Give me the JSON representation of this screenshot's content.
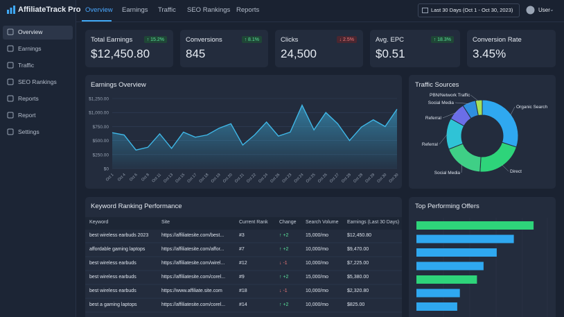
{
  "app": {
    "logo": "AffiliateTrack Pro"
  },
  "sidebar": [
    "Overview",
    "Earnings",
    "Traffic",
    "SEO Rankings",
    "Reports",
    "Report",
    "Settings"
  ],
  "nav": {
    "tabs": [
      "Overview",
      "Earnings",
      "Traffic",
      "SEO Rankings",
      "Reports"
    ],
    "date_range": "Last 30 Days (Oct 1 - Oct 30, 2023)",
    "user": "User"
  },
  "kpis": [
    {
      "title": "Total Earnings",
      "change": "↑ 15.2%",
      "value": "$12,450.80"
    },
    {
      "title": "Conversions",
      "change": "↑ 8.1%",
      "value": "845"
    },
    {
      "title": "Clicks",
      "change": "↓ 2.5%",
      "value": "24,500"
    },
    {
      "title": "Avg. EPC",
      "change": "↑ 18.3%",
      "value": "$0.51"
    },
    {
      "title": "Conversion Rate",
      "value": "3.45%"
    }
  ],
  "chart_data": [
    {
      "type": "line",
      "title": "Earnings Overview",
      "color": "#3fb8e8",
      "grid": true,
      "categories": [
        "Oct 1",
        "Oct 4",
        "Oct 6",
        "Oct 8",
        "Oct 11",
        "Oct 13",
        "Oct 15",
        "Oct 17",
        "Oct 18",
        "Oct 19",
        "Oct 20",
        "Oct 21",
        "Oct 22",
        "Oct 24",
        "Oct 26",
        "Oct 23",
        "Oct 24",
        "Oct 25",
        "Oct 26",
        "Oct 27",
        "Oct 28",
        "Oct 28",
        "Oct 29",
        "Oct 30",
        "Oct 30"
      ],
      "values": [
        640,
        600,
        330,
        380,
        620,
        360,
        650,
        560,
        600,
        720,
        800,
        420,
        600,
        830,
        580,
        650,
        1130,
        690,
        1000,
        800,
        500,
        740,
        870,
        750,
        1060
      ],
      "ylim": [
        0,
        1250
      ],
      "yticks": [
        {
          "value": 0,
          "label": "$0"
        },
        {
          "value": 250,
          "label": "$250.00"
        },
        {
          "value": 500,
          "label": "$500.00"
        },
        {
          "value": 750,
          "label": "$750.00"
        },
        {
          "value": 1000,
          "label": "$1,000.00"
        },
        {
          "value": 1250,
          "label": "$1,250.00"
        }
      ]
    },
    {
      "type": "pie",
      "title": "Traffic Sources",
      "categories": [
        "Organic Search",
        "Direct",
        "Social Media",
        "Referral",
        "Referral",
        "Social Media",
        "PBN/Network Traffic"
      ],
      "values": [
        30,
        21,
        18,
        14,
        8,
        6,
        3
      ],
      "colors": [
        "#2fa8f0",
        "#2ed47a",
        "#3fcf86",
        "#2fc3d6",
        "#6b6ee8",
        "#2f8fe0",
        "#a4e05a"
      ]
    },
    {
      "type": "bar",
      "orientation": "horizontal",
      "title": "Top Performing Offers",
      "categories": [
        null,
        null,
        null,
        null,
        null,
        null,
        null
      ],
      "values": [
        89,
        74,
        61,
        51,
        46,
        33,
        31
      ],
      "colors": [
        "#2ed47a",
        "#2fa8f0",
        "#2fa8f0",
        "#2fa8f0",
        "#2ed47a",
        "#2fa8f0",
        "#2fa8f0"
      ],
      "xlim": [
        0,
        100
      ]
    }
  ],
  "keyword_table": {
    "title": "Keyword Ranking Performance",
    "columns": [
      "Keyword",
      "Site",
      "Current Rank",
      "Change",
      "Search Volume",
      "Earnings (Last 30 Days)"
    ],
    "rows": [
      [
        "best wireless earbuds 2023",
        "https://affiliatesite.com/best...",
        "#3",
        "↑ +2",
        "15,000/mo",
        "$12,450.80"
      ],
      [
        "affordable gaming laptops",
        "https://affiliatesite.com/affor...",
        "#7",
        "↑ +2",
        "10,000/mo",
        "$9,470.00"
      ],
      [
        "best wireless earbuds",
        "https://affiliatesite.com/wirel...",
        "#12",
        "↓ -1",
        "10,000/mo",
        "$7,225.00"
      ],
      [
        "best wireless earbuds",
        "https://affiliatesite.com/corel...",
        "#9",
        "↑ +2",
        "15,000/mo",
        "$5,380.00"
      ],
      [
        "best wireless earbuds",
        "https://www.affiliate.site.com",
        "#18",
        "↓ -1",
        "10,000/mo",
        "$2,320.80"
      ],
      [
        "best a gaming laptops",
        "https://affiliatesite.com/corel...",
        "#14",
        "↑ +2",
        "10,000/mo",
        "$825.00"
      ]
    ]
  }
}
